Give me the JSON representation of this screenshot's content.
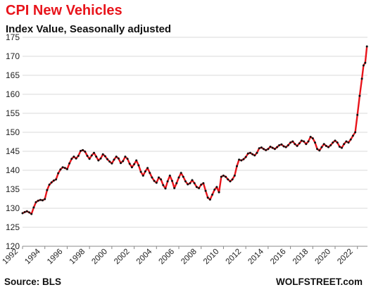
{
  "chart_data": {
    "type": "line",
    "title": "CPI New Vehicles",
    "subtitle": "Index Value, Seasonally adjusted",
    "xlabel": "",
    "ylabel": "",
    "xlim": [
      1992,
      2022.9
    ],
    "ylim": [
      120,
      175
    ],
    "y_ticks": [
      120,
      125,
      130,
      135,
      140,
      145,
      150,
      155,
      160,
      165,
      170,
      175
    ],
    "x_ticks": [
      "1992",
      "1994",
      "1996",
      "1998",
      "2000",
      "2002",
      "2004",
      "2006",
      "2008",
      "2010",
      "2012",
      "2014",
      "2016",
      "2018",
      "2020",
      "2022"
    ],
    "grid": "horizontal",
    "series": [
      {
        "line_color": "#e8141b",
        "marker_color": "#111111",
        "points": [
          [
            1992.0,
            128.7
          ],
          [
            1992.2,
            129.0
          ],
          [
            1992.4,
            129.2
          ],
          [
            1992.6,
            128.9
          ],
          [
            1992.8,
            128.5
          ],
          [
            1993.0,
            130.2
          ],
          [
            1993.2,
            131.6
          ],
          [
            1993.4,
            132.0
          ],
          [
            1993.6,
            132.2
          ],
          [
            1993.8,
            132.1
          ],
          [
            1994.0,
            132.4
          ],
          [
            1994.2,
            134.8
          ],
          [
            1994.4,
            136.2
          ],
          [
            1994.6,
            136.8
          ],
          [
            1994.8,
            137.3
          ],
          [
            1995.0,
            137.6
          ],
          [
            1995.2,
            139.2
          ],
          [
            1995.4,
            140.2
          ],
          [
            1995.6,
            140.8
          ],
          [
            1995.8,
            140.6
          ],
          [
            1996.0,
            140.3
          ],
          [
            1996.2,
            141.8
          ],
          [
            1996.4,
            143.0
          ],
          [
            1996.6,
            143.6
          ],
          [
            1996.8,
            143.1
          ],
          [
            1997.0,
            143.8
          ],
          [
            1997.2,
            145.1
          ],
          [
            1997.4,
            145.3
          ],
          [
            1997.6,
            144.9
          ],
          [
            1997.8,
            143.8
          ],
          [
            1998.0,
            143.0
          ],
          [
            1998.2,
            143.9
          ],
          [
            1998.4,
            144.6
          ],
          [
            1998.6,
            143.6
          ],
          [
            1998.8,
            142.6
          ],
          [
            1999.0,
            143.1
          ],
          [
            1999.2,
            144.2
          ],
          [
            1999.4,
            143.7
          ],
          [
            1999.6,
            142.9
          ],
          [
            1999.8,
            142.3
          ],
          [
            2000.0,
            141.8
          ],
          [
            2000.2,
            142.8
          ],
          [
            2000.4,
            143.6
          ],
          [
            2000.6,
            143.1
          ],
          [
            2000.8,
            141.9
          ],
          [
            2001.0,
            142.4
          ],
          [
            2001.2,
            143.6
          ],
          [
            2001.4,
            143.0
          ],
          [
            2001.6,
            141.7
          ],
          [
            2001.8,
            140.8
          ],
          [
            2002.0,
            141.6
          ],
          [
            2002.2,
            142.6
          ],
          [
            2002.4,
            141.3
          ],
          [
            2002.6,
            139.6
          ],
          [
            2002.8,
            138.6
          ],
          [
            2003.0,
            139.7
          ],
          [
            2003.2,
            140.6
          ],
          [
            2003.4,
            139.3
          ],
          [
            2003.6,
            138.1
          ],
          [
            2003.8,
            137.2
          ],
          [
            2004.0,
            136.7
          ],
          [
            2004.2,
            138.1
          ],
          [
            2004.4,
            137.6
          ],
          [
            2004.6,
            136.1
          ],
          [
            2004.8,
            135.2
          ],
          [
            2005.0,
            137.1
          ],
          [
            2005.2,
            138.6
          ],
          [
            2005.4,
            137.2
          ],
          [
            2005.6,
            135.3
          ],
          [
            2005.8,
            136.6
          ],
          [
            2006.0,
            138.1
          ],
          [
            2006.2,
            139.3
          ],
          [
            2006.4,
            138.3
          ],
          [
            2006.6,
            137.1
          ],
          [
            2006.8,
            136.3
          ],
          [
            2007.0,
            136.6
          ],
          [
            2007.2,
            137.4
          ],
          [
            2007.4,
            136.6
          ],
          [
            2007.6,
            135.6
          ],
          [
            2007.8,
            135.3
          ],
          [
            2008.0,
            136.2
          ],
          [
            2008.2,
            136.6
          ],
          [
            2008.4,
            134.6
          ],
          [
            2008.6,
            132.8
          ],
          [
            2008.8,
            132.3
          ],
          [
            2009.0,
            133.6
          ],
          [
            2009.2,
            134.9
          ],
          [
            2009.4,
            135.6
          ],
          [
            2009.6,
            134.2
          ],
          [
            2009.8,
            138.3
          ],
          [
            2010.0,
            138.6
          ],
          [
            2010.2,
            138.3
          ],
          [
            2010.4,
            137.6
          ],
          [
            2010.6,
            137.1
          ],
          [
            2010.8,
            137.6
          ],
          [
            2011.0,
            138.6
          ],
          [
            2011.2,
            141.1
          ],
          [
            2011.4,
            142.8
          ],
          [
            2011.6,
            142.6
          ],
          [
            2011.8,
            142.9
          ],
          [
            2012.0,
            143.5
          ],
          [
            2012.2,
            144.4
          ],
          [
            2012.4,
            144.6
          ],
          [
            2012.6,
            144.2
          ],
          [
            2012.8,
            143.9
          ],
          [
            2013.0,
            144.6
          ],
          [
            2013.2,
            145.8
          ],
          [
            2013.4,
            146.0
          ],
          [
            2013.6,
            145.6
          ],
          [
            2013.8,
            145.3
          ],
          [
            2014.0,
            145.6
          ],
          [
            2014.2,
            146.2
          ],
          [
            2014.4,
            145.9
          ],
          [
            2014.6,
            145.6
          ],
          [
            2014.8,
            146.1
          ],
          [
            2015.0,
            146.6
          ],
          [
            2015.2,
            146.8
          ],
          [
            2015.4,
            146.3
          ],
          [
            2015.6,
            146.1
          ],
          [
            2015.8,
            146.6
          ],
          [
            2016.0,
            147.3
          ],
          [
            2016.2,
            147.6
          ],
          [
            2016.4,
            146.9
          ],
          [
            2016.6,
            146.4
          ],
          [
            2016.8,
            147.1
          ],
          [
            2017.0,
            147.8
          ],
          [
            2017.2,
            147.6
          ],
          [
            2017.4,
            146.9
          ],
          [
            2017.6,
            147.6
          ],
          [
            2017.8,
            148.8
          ],
          [
            2018.0,
            148.4
          ],
          [
            2018.2,
            147.3
          ],
          [
            2018.4,
            145.6
          ],
          [
            2018.6,
            145.2
          ],
          [
            2018.8,
            146.1
          ],
          [
            2019.0,
            146.9
          ],
          [
            2019.2,
            146.4
          ],
          [
            2019.4,
            146.1
          ],
          [
            2019.6,
            146.6
          ],
          [
            2019.8,
            147.3
          ],
          [
            2020.0,
            147.8
          ],
          [
            2020.2,
            147.3
          ],
          [
            2020.4,
            146.2
          ],
          [
            2020.6,
            145.9
          ],
          [
            2020.8,
            146.9
          ],
          [
            2021.0,
            147.6
          ],
          [
            2021.2,
            147.3
          ],
          [
            2021.4,
            148.1
          ],
          [
            2021.6,
            149.1
          ],
          [
            2021.8,
            150.0
          ],
          [
            2022.0,
            154.6
          ],
          [
            2022.2,
            159.6
          ],
          [
            2022.4,
            164.1
          ],
          [
            2022.55,
            167.6
          ],
          [
            2022.7,
            168.3
          ],
          [
            2022.85,
            172.6
          ]
        ]
      }
    ]
  },
  "footer": {
    "source": "Source: BLS",
    "brand": "WOLFSTREET.com"
  }
}
